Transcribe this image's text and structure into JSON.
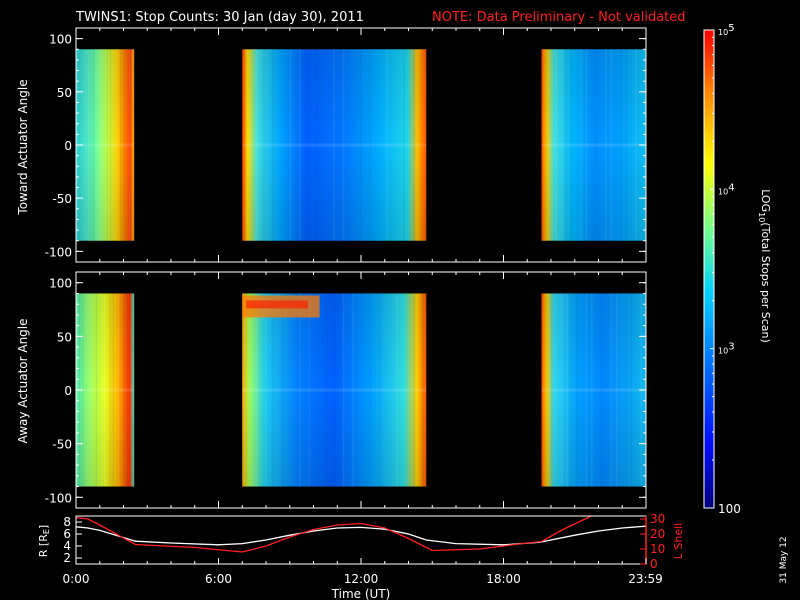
{
  "title": "TWINS1: Stop Counts: 30 Jan (day  30), 2011",
  "note": "NOTE: Data Preliminary - Not validated",
  "date_stamp": "31 May 12",
  "chart_data": [
    {
      "type": "heatmap",
      "ylabel": "Toward Actuator Angle",
      "ylim": [
        -110,
        110
      ],
      "yticks": [
        "100",
        "50",
        "0",
        "-50",
        "-100"
      ],
      "ytick_values": [
        100,
        50,
        0,
        -50,
        -100
      ],
      "data_angle_range": [
        -90,
        90
      ],
      "xlim_hours": [
        0,
        24
      ],
      "coverage_hours": [
        [
          0.0,
          2.45
        ],
        [
          7.0,
          14.75
        ],
        [
          19.6,
          24.0
        ]
      ],
      "gap_hours": [
        [
          2.45,
          7.0
        ],
        [
          14.75,
          19.6
        ]
      ]
    },
    {
      "type": "heatmap",
      "ylabel": "Away Actuator Angle",
      "ylim": [
        -110,
        110
      ],
      "yticks": [
        "100",
        "50",
        "0",
        "-50",
        "-100"
      ],
      "ytick_values": [
        100,
        50,
        0,
        -50,
        -100
      ],
      "data_angle_range": [
        -90,
        90
      ],
      "xlim_hours": [
        0,
        24
      ],
      "coverage_hours": [
        [
          0.0,
          2.45
        ],
        [
          7.0,
          14.75
        ],
        [
          19.6,
          24.0
        ]
      ],
      "gap_hours": [
        [
          2.45,
          7.0
        ],
        [
          14.75,
          19.6
        ]
      ]
    },
    {
      "type": "line",
      "ylabel_left": "R [RE]",
      "ylabel_right": "L Shell",
      "xlabel": "Time (UT)",
      "xticks": [
        "0:00",
        "6:00",
        "12:00",
        "18:00",
        "23:59"
      ],
      "xtick_hours": [
        0,
        6,
        12,
        18,
        23.98
      ],
      "left_ylim": [
        1,
        9
      ],
      "left_yticks": [
        "8",
        "6",
        "4",
        "2"
      ],
      "left_ytick_values": [
        8,
        6,
        4,
        2
      ],
      "right_ylim": [
        0,
        32
      ],
      "right_yticks": [
        "30",
        "20",
        "10",
        "0"
      ],
      "right_ytick_values": [
        30,
        20,
        10,
        0
      ],
      "series": [
        {
          "color": "#ffffff",
          "x": [
            0,
            0.5,
            1,
            2.5,
            4,
            6,
            7,
            8,
            9,
            10,
            11,
            12,
            13,
            14,
            14.75,
            16,
            18,
            19.5,
            21,
            22,
            23,
            24
          ],
          "values": [
            7.2,
            7.0,
            6.6,
            4.8,
            4.5,
            4.2,
            4.4,
            5.0,
            5.8,
            6.5,
            7.0,
            7.1,
            6.8,
            6.0,
            5.0,
            4.4,
            4.2,
            4.6,
            5.8,
            6.5,
            7.0,
            7.3
          ]
        },
        {
          "color": "#ff2020",
          "x": [
            0,
            0.5,
            1,
            2.5,
            5,
            7,
            8,
            9,
            10,
            11,
            12,
            13,
            14,
            15,
            17,
            19,
            19.6,
            20.5,
            21.7
          ],
          "values": [
            31,
            30,
            26,
            13,
            11,
            8,
            12,
            18,
            23,
            26,
            27,
            24,
            17,
            9,
            10,
            14,
            15,
            23,
            32
          ]
        }
      ]
    }
  ],
  "colorbar": {
    "label": "LOG10(Total Stops per Scan)",
    "label_main": "LOG",
    "label_sub": "10",
    "label_rest": "(Total Stops per Scan)",
    "range": [
      100,
      100000
    ],
    "log": true,
    "ticks": [
      {
        "value": 100000,
        "base": "10",
        "exp": "5"
      },
      {
        "value": 10000,
        "base": "10",
        "exp": "4"
      },
      {
        "value": 1000,
        "base": "10",
        "exp": "3"
      },
      {
        "value": 100,
        "base": "100",
        "exp": ""
      }
    ]
  }
}
